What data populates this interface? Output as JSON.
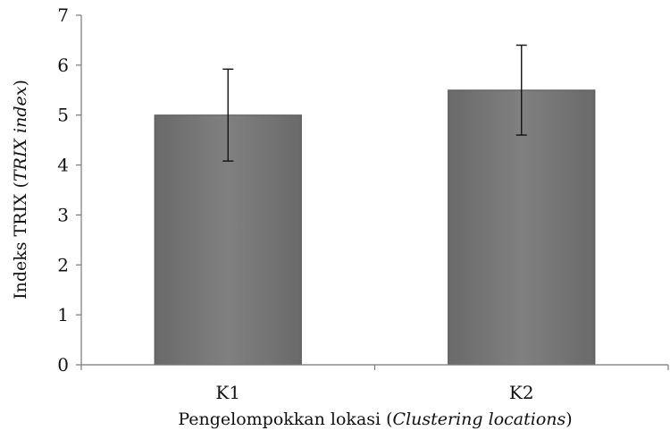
{
  "chart_data": {
    "type": "bar",
    "categories": [
      "K1",
      "K2"
    ],
    "values": [
      5.0,
      5.5
    ],
    "error": [
      0.92,
      0.9
    ],
    "ylim": [
      0,
      7
    ],
    "yticks": [
      "0",
      "1",
      "2",
      "3",
      "4",
      "5",
      "6",
      "7"
    ],
    "xlabel": {
      "plain": "Pengelompokkan lokasi (",
      "italic": "Clustering locations",
      "close": ")"
    },
    "ylabel": {
      "plain": "Indeks TRIX (",
      "italic": "TRIX index",
      "close": ")"
    },
    "bar_color": "#7a7a7a",
    "grid": false,
    "legend": "none"
  }
}
